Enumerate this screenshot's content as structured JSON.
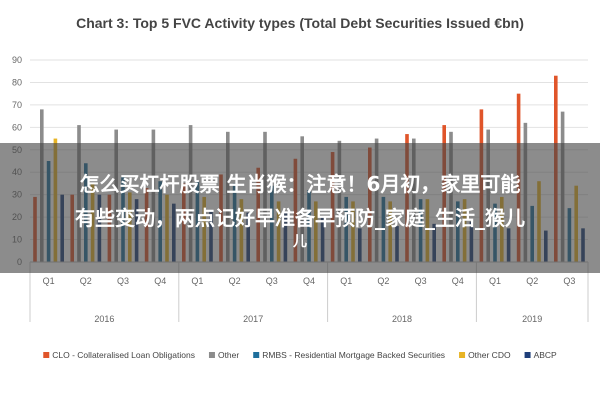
{
  "chart_data": {
    "type": "bar",
    "title": "Chart 3: Top 5 FVC Activity types (Total Debt Securities Issued €bn)",
    "ylim": [
      0,
      90
    ],
    "yticks": [
      0,
      10,
      20,
      30,
      40,
      50,
      60,
      70,
      80,
      90
    ],
    "grid": true,
    "legend_position": "bottom",
    "categories": [
      "Q1",
      "Q2",
      "Q3",
      "Q4",
      "Q1",
      "Q2",
      "Q3",
      "Q4",
      "Q1",
      "Q2",
      "Q3",
      "Q4",
      "Q1",
      "Q2",
      "Q3"
    ],
    "years": [
      {
        "label": "2016",
        "quarters": 4
      },
      {
        "label": "2017",
        "quarters": 4
      },
      {
        "label": "2018",
        "quarters": 4
      },
      {
        "label": "2019",
        "quarters": 3
      }
    ],
    "series": [
      {
        "name": "CLO - Collateralised Loan Obligations",
        "color": "#e0552a",
        "values": [
          29,
          30,
          30,
          33,
          35,
          39,
          42,
          46,
          49,
          51,
          57,
          61,
          68,
          75,
          83
        ]
      },
      {
        "name": "Other",
        "color": "#8c8c8c",
        "values": [
          68,
          61,
          59,
          59,
          61,
          58,
          58,
          56,
          54,
          55,
          55,
          58,
          59,
          62,
          67
        ]
      },
      {
        "name": "RMBS - Residential Mortgage Backed Securities",
        "color": "#1e6f9c",
        "values": [
          45,
          44,
          38,
          36,
          36,
          35,
          34,
          32,
          29,
          29,
          28,
          27,
          26,
          25,
          24
        ]
      },
      {
        "name": "Other CDO",
        "color": "#e8b424",
        "values": [
          55,
          35,
          31,
          30,
          29,
          28,
          27,
          27,
          27,
          27,
          28,
          28,
          29,
          36,
          34
        ]
      },
      {
        "name": "ABCP",
        "color": "#1f3f7a",
        "values": [
          30,
          30,
          28,
          26,
          23,
          22,
          22,
          20,
          15,
          16,
          17,
          18,
          15,
          14,
          15
        ]
      }
    ]
  },
  "overlay": {
    "line1": "怎么买杠杆股票 生肖猴：注意！6月初，家里可能",
    "line2": "有些变动，两点记好早准备早预防_家庭_生活_猴儿",
    "line3": "儿"
  }
}
